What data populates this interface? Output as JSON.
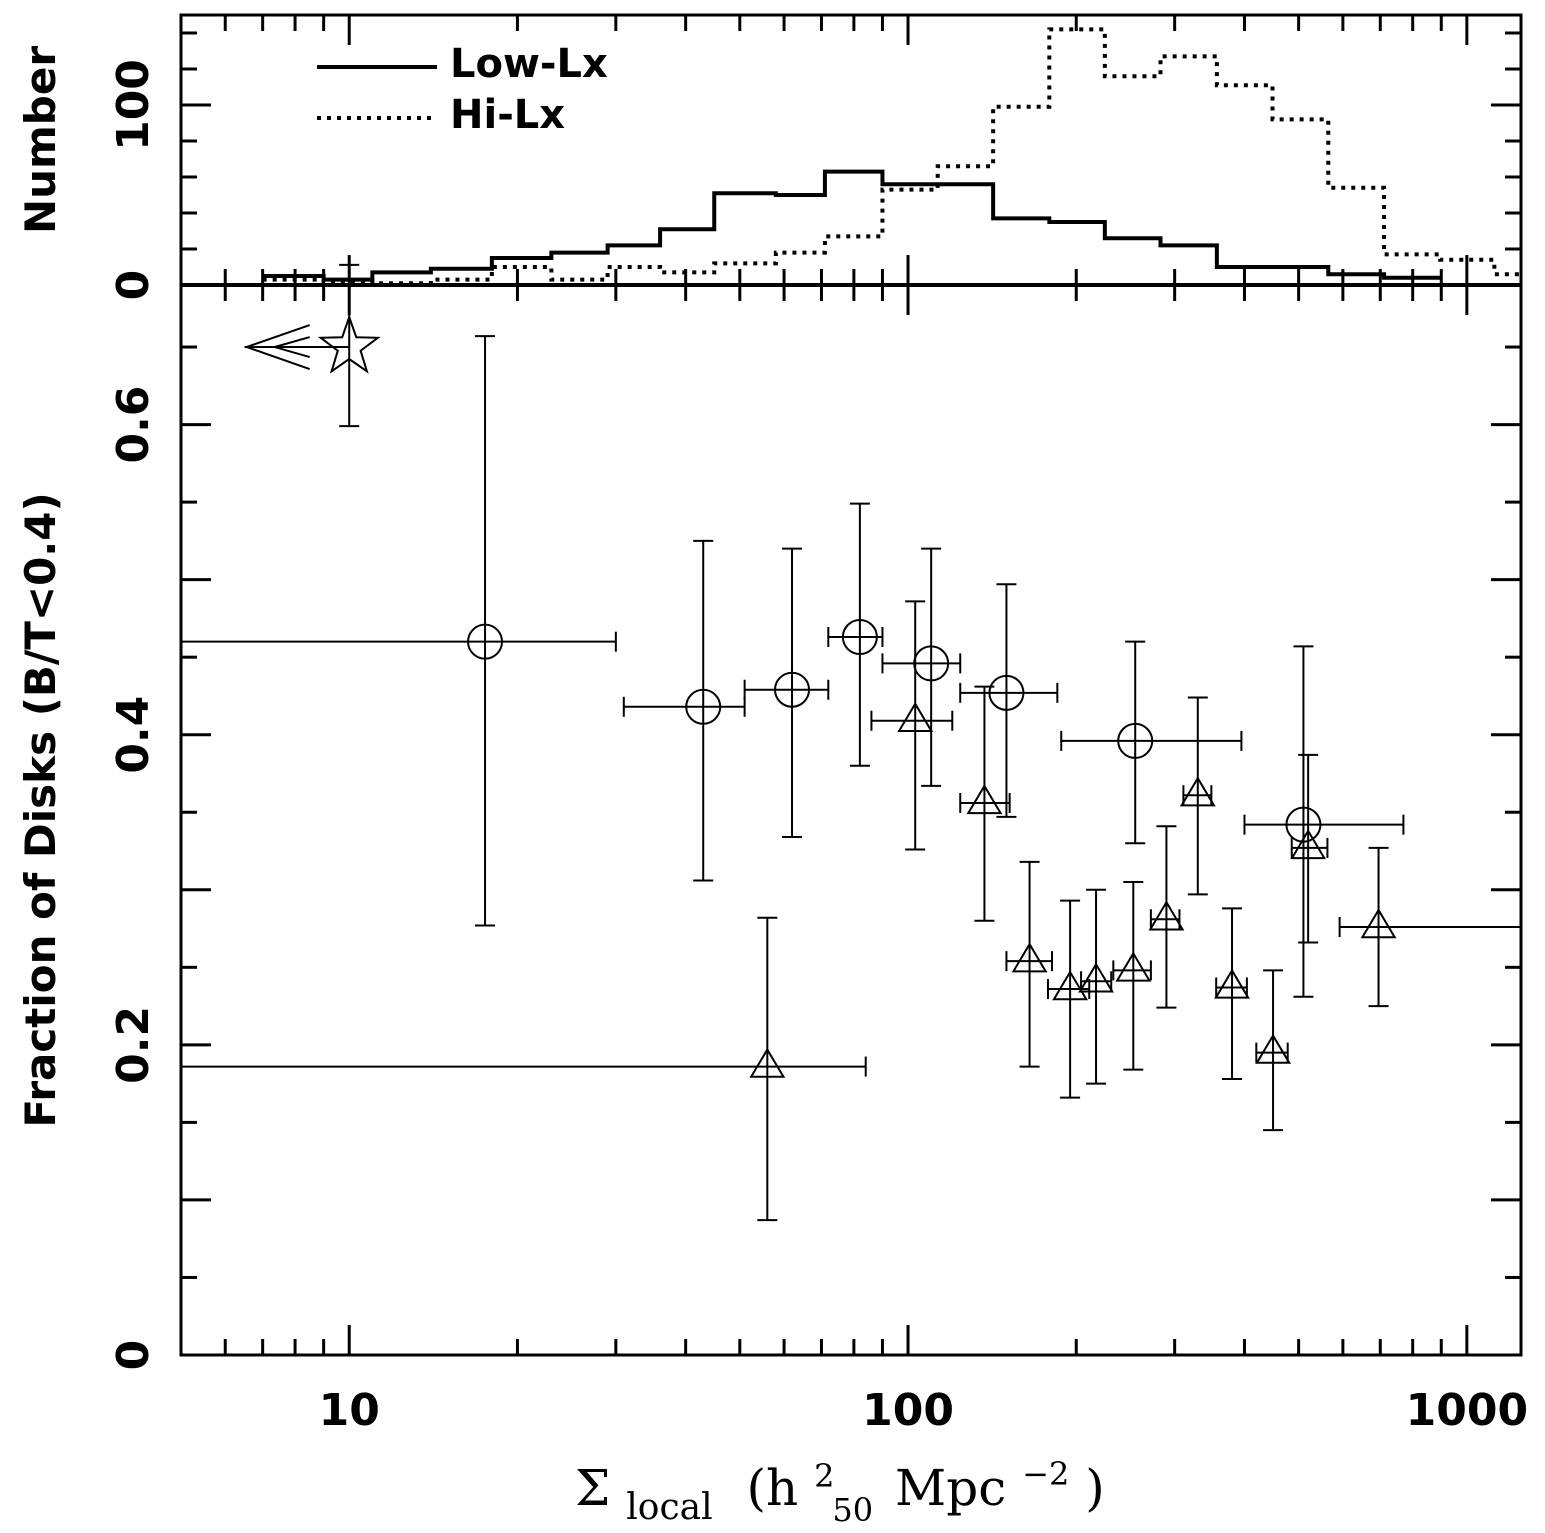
{
  "chart_data": [
    {
      "type": "histogram",
      "panel": "top",
      "ylabel": "Number",
      "ylim": [
        0,
        150
      ],
      "yticks": [
        0,
        100
      ],
      "xscale": "log",
      "xlim": [
        5.0,
        1250
      ],
      "legend": {
        "placement": "top-left",
        "entries": [
          {
            "name": "Low-Lx",
            "style": "solid"
          },
          {
            "name": "Hi-Lx",
            "style": "dotted"
          }
        ]
      },
      "series": [
        {
          "name": "Low-Lx",
          "style": "solid",
          "edges": [
            7,
            9,
            11,
            14,
            18,
            23,
            29,
            36,
            45,
            58,
            71,
            90,
            113,
            142,
            179,
            225,
            283,
            357,
            449,
            565,
            711,
            896
          ],
          "values": [
            5,
            3,
            7,
            9,
            15,
            18,
            22,
            31,
            51,
            50,
            63,
            56,
            56,
            37,
            35,
            26,
            22,
            10,
            10,
            6,
            4
          ]
        },
        {
          "name": "Hi-Lx",
          "style": "dotted",
          "edges": [
            7,
            9,
            11,
            14,
            18,
            23,
            29,
            36,
            45,
            58,
            71,
            90,
            113,
            142,
            179,
            225,
            283,
            357,
            449,
            565,
            711,
            896,
            1120,
            1250
          ],
          "values": [
            3,
            2,
            1,
            3,
            10,
            3,
            10,
            7,
            12,
            18,
            27,
            53,
            66,
            99,
            142,
            116,
            127,
            111,
            92,
            54,
            17,
            14,
            6
          ]
        }
      ]
    },
    {
      "type": "scatter",
      "panel": "bottom",
      "xlabel": "Σlocal (h²₅₀ Mpc⁻²)",
      "ylabel": "Fraction of Disks (B/T<0.4)",
      "xscale": "log",
      "xlim": [
        5.0,
        1250
      ],
      "ylim": [
        0,
        0.69
      ],
      "xticks": [
        10,
        100,
        1000
      ],
      "yticks": [
        0,
        0.2,
        0.4,
        0.6
      ],
      "series": [
        {
          "name": "circles",
          "marker": "circle",
          "points": [
            {
              "x": 17.5,
              "y": 0.46,
              "xlo": 5.0,
              "xhi": 30,
              "ylo": 0.277,
              "yhi": 0.657
            },
            {
              "x": 43,
              "y": 0.418,
              "xlo": 31,
              "xhi": 51,
              "ylo": 0.306,
              "yhi": 0.525
            },
            {
              "x": 62,
              "y": 0.429,
              "xlo": 51,
              "xhi": 72,
              "ylo": 0.334,
              "yhi": 0.52
            },
            {
              "x": 82,
              "y": 0.463,
              "xlo": 72,
              "xhi": 90,
              "ylo": 0.38,
              "yhi": 0.549
            },
            {
              "x": 110,
              "y": 0.446,
              "xlo": 90,
              "xhi": 124,
              "ylo": 0.367,
              "yhi": 0.52
            },
            {
              "x": 150,
              "y": 0.427,
              "xlo": 124,
              "xhi": 185,
              "ylo": 0.347,
              "yhi": 0.497
            },
            {
              "x": 255,
              "y": 0.396,
              "xlo": 188,
              "xhi": 395,
              "ylo": 0.33,
              "yhi": 0.46
            },
            {
              "x": 510,
              "y": 0.342,
              "xlo": 400,
              "xhi": 770,
              "ylo": 0.231,
              "yhi": 0.457
            }
          ]
        },
        {
          "name": "triangles",
          "marker": "triangle",
          "points": [
            {
              "x": 56,
              "y": 0.186,
              "xlo": 5.0,
              "xhi": 84,
              "ylo": 0.087,
              "yhi": 0.282
            },
            {
              "x": 103,
              "y": 0.409,
              "xlo": 86,
              "xhi": 120,
              "ylo": 0.326,
              "yhi": 0.486
            },
            {
              "x": 137,
              "y": 0.356,
              "xlo": 124,
              "xhi": 152,
              "ylo": 0.28,
              "yhi": 0.431
            },
            {
              "x": 165,
              "y": 0.254,
              "xlo": 150,
              "xhi": 181,
              "ylo": 0.186,
              "yhi": 0.318
            },
            {
              "x": 195,
              "y": 0.236,
              "xlo": 178,
              "xhi": 211,
              "ylo": 0.166,
              "yhi": 0.293
            },
            {
              "x": 217,
              "y": 0.241,
              "xlo": 204,
              "xhi": 231,
              "ylo": 0.175,
              "yhi": 0.3
            },
            {
              "x": 253,
              "y": 0.248,
              "xlo": 233,
              "xhi": 272,
              "ylo": 0.184,
              "yhi": 0.305
            },
            {
              "x": 290,
              "y": 0.281,
              "xlo": 272,
              "xhi": 306,
              "ylo": 0.224,
              "yhi": 0.341
            },
            {
              "x": 330,
              "y": 0.361,
              "xlo": 311,
              "xhi": 349,
              "ylo": 0.297,
              "yhi": 0.424
            },
            {
              "x": 380,
              "y": 0.237,
              "xlo": 356,
              "xhi": 404,
              "ylo": 0.178,
              "yhi": 0.288
            },
            {
              "x": 450,
              "y": 0.195,
              "xlo": 420,
              "xhi": 478,
              "ylo": 0.145,
              "yhi": 0.248
            },
            {
              "x": 520,
              "y": 0.327,
              "xlo": 486,
              "xhi": 563,
              "ylo": 0.266,
              "yhi": 0.387
            },
            {
              "x": 695,
              "y": 0.276,
              "xlo": 592,
              "xhi": 1250,
              "ylo": 0.225,
              "yhi": 0.327
            }
          ]
        },
        {
          "name": "star",
          "marker": "star",
          "upper_limit_x": true,
          "points": [
            {
              "x": 10,
              "y": 0.65,
              "xlo": 6.5,
              "xhi": 10,
              "ylo": 0.599,
              "yhi": 0.703
            }
          ]
        }
      ]
    }
  ],
  "labels": {
    "top_ylabel": "Number",
    "bottom_ylabel": "Fraction of Disks (B/T<0.4)",
    "xlabel_sigma": "Σ",
    "xlabel_sub": "local",
    "xlabel_open": "(h",
    "xlabel_sup2": "2",
    "xlabel_sub50": "50",
    "xlabel_mpc": "Mpc",
    "xlabel_supm2": "−2",
    "xlabel_close": ")",
    "legend_low": "Low-Lx",
    "legend_hi": "Hi-Lx",
    "xtick_labels": [
      "10",
      "100",
      "1000"
    ],
    "top_ytick_labels": [
      "0",
      "100"
    ],
    "bottom_ytick_labels": [
      "0",
      "0.2",
      "0.4",
      "0.6"
    ]
  }
}
